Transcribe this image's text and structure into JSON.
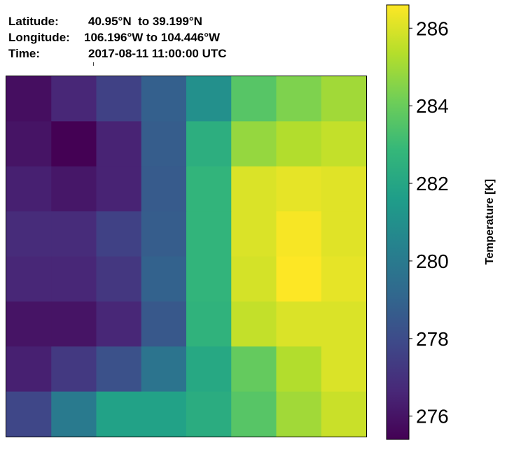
{
  "header": {
    "latitude_label": "Latitude:",
    "latitude_value": "40.95°N  to 39.199°N",
    "longitude_label": "Longitude:",
    "longitude_value": "106.196°W to 104.446°W",
    "time_label": "Time:",
    "time_value": "2017-08-11 11:00:00 UTC"
  },
  "chart_data": {
    "type": "heatmap",
    "rows": 8,
    "cols": 8,
    "values": [
      [
        275.8,
        276.6,
        277.6,
        278.8,
        281.0,
        283.6,
        284.4,
        285.0
      ],
      [
        276.0,
        275.4,
        276.5,
        278.7,
        282.4,
        284.8,
        285.3,
        285.6
      ],
      [
        276.4,
        276.1,
        276.5,
        278.6,
        282.7,
        286.0,
        286.2,
        286.1
      ],
      [
        276.8,
        276.8,
        277.6,
        278.7,
        282.7,
        286.0,
        286.5,
        286.1
      ],
      [
        276.6,
        276.6,
        277.2,
        278.9,
        282.7,
        285.9,
        286.6,
        286.2
      ],
      [
        276.0,
        276.0,
        276.6,
        278.5,
        282.6,
        285.6,
        286.0,
        286.0
      ],
      [
        276.4,
        277.3,
        278.2,
        279.7,
        282.1,
        283.9,
        285.3,
        286.0
      ],
      [
        277.8,
        280.0,
        281.8,
        281.8,
        282.3,
        283.6,
        285.0,
        285.7
      ]
    ],
    "vmin": 275.4,
    "vmax": 286.6,
    "colorbar": {
      "label": "Temperature [K]",
      "ticks": [
        "276",
        "278",
        "280",
        "282",
        "284",
        "286"
      ],
      "tick_values": [
        276,
        278,
        280,
        282,
        284,
        286
      ]
    },
    "colormap": "viridis",
    "colors": {
      "viridis_stops": [
        "#440154",
        "#482878",
        "#3e4989",
        "#31688e",
        "#26828e",
        "#1f9e89",
        "#35b779",
        "#6ece58",
        "#b5de2b",
        "#fde725"
      ]
    }
  }
}
